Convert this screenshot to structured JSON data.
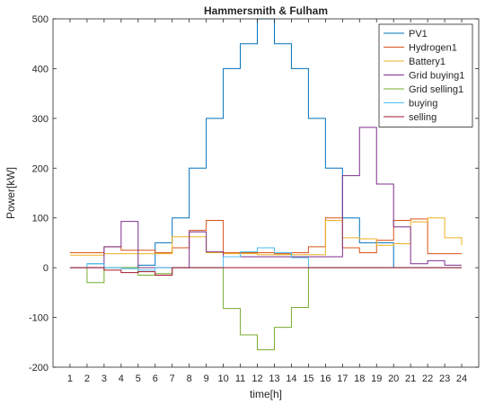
{
  "chart_data": {
    "type": "line",
    "step": true,
    "title": "Hammersmith & Fulham",
    "xlabel": "time[h]",
    "ylabel": "Power[kW]",
    "xlim": [
      0,
      25
    ],
    "ylim": [
      -200,
      500
    ],
    "xticks": [
      1,
      2,
      3,
      4,
      5,
      6,
      7,
      8,
      9,
      10,
      11,
      12,
      13,
      14,
      15,
      16,
      17,
      18,
      19,
      20,
      21,
      22,
      23,
      24
    ],
    "yticks": [
      -200,
      -100,
      0,
      100,
      200,
      300,
      400,
      500
    ],
    "grid": false,
    "legend": "top-right",
    "series": [
      {
        "name": "PV1",
        "color": "#0072BD",
        "x": [
          2,
          3,
          4,
          5,
          6,
          7,
          8,
          9,
          10,
          11,
          12,
          13,
          14,
          15,
          16,
          17,
          18,
          19,
          20
        ],
        "values": [
          8,
          0,
          0,
          5,
          50,
          100,
          200,
          300,
          400,
          450,
          500,
          450,
          400,
          300,
          200,
          100,
          50,
          50,
          0
        ]
      },
      {
        "name": "Hydrogen1",
        "color": "#D95319",
        "x": [
          1,
          2,
          3,
          4,
          5,
          6,
          7,
          8,
          9,
          10,
          11,
          12,
          13,
          14,
          15,
          16,
          17,
          18,
          19,
          20,
          21,
          22,
          23,
          24
        ],
        "values": [
          30,
          30,
          42,
          35,
          35,
          30,
          40,
          75,
          95,
          30,
          30,
          30,
          28,
          30,
          42,
          100,
          40,
          30,
          55,
          95,
          98,
          28,
          28,
          28
        ]
      },
      {
        "name": "Battery1",
        "color": "#EDB120",
        "x": [
          1,
          2,
          3,
          4,
          5,
          6,
          7,
          8,
          9,
          10,
          11,
          12,
          13,
          14,
          15,
          16,
          17,
          18,
          19,
          20,
          21,
          22,
          23,
          24
        ],
        "values": [
          25,
          25,
          28,
          28,
          28,
          28,
          62,
          62,
          30,
          28,
          28,
          26,
          26,
          26,
          26,
          95,
          60,
          58,
          45,
          48,
          92,
          100,
          60,
          45
        ]
      },
      {
        "name": "Grid buying1",
        "color": "#7E2F8E",
        "x": [
          1,
          2,
          3,
          4,
          5,
          6,
          7,
          8,
          9,
          10,
          11,
          12,
          13,
          14,
          15,
          16,
          17,
          18,
          19,
          20,
          21,
          22,
          23,
          24
        ],
        "values": [
          0,
          0,
          42,
          93,
          0,
          0,
          0,
          72,
          32,
          22,
          22,
          22,
          22,
          22,
          22,
          22,
          185,
          282,
          168,
          82,
          8,
          14,
          5,
          5
        ]
      },
      {
        "name": "Grid selling1",
        "color": "#77AC30",
        "x": [
          1,
          2,
          3,
          4,
          5,
          6,
          7,
          8,
          9,
          10,
          11,
          12,
          13,
          14,
          15,
          16,
          17,
          18,
          19,
          20,
          21,
          22,
          23,
          24
        ],
        "values": [
          0,
          -30,
          0,
          0,
          -15,
          -12,
          0,
          0,
          0,
          -82,
          -135,
          -165,
          -120,
          -80,
          0,
          0,
          0,
          0,
          0,
          0,
          0,
          0,
          0,
          0
        ]
      },
      {
        "name": "buying",
        "color": "#4DBEEE",
        "x": [
          1,
          2,
          3,
          4,
          5,
          6,
          7,
          8,
          9,
          10,
          11,
          12,
          13,
          14,
          15,
          16,
          17,
          18,
          19,
          20,
          21,
          22,
          23,
          24
        ],
        "values": [
          0,
          8,
          0,
          -2,
          -5,
          0,
          0,
          0,
          0,
          22,
          32,
          40,
          30,
          20,
          0,
          0,
          0,
          0,
          0,
          0,
          0,
          0,
          0,
          0
        ]
      },
      {
        "name": "selling",
        "color": "#A2142F",
        "x": [
          1,
          2,
          3,
          4,
          5,
          6,
          7,
          8,
          9,
          10,
          11,
          12,
          13,
          14,
          15,
          16,
          17,
          18,
          19,
          20,
          21,
          22,
          23,
          24
        ],
        "values": [
          0,
          0,
          -5,
          -10,
          -8,
          -15,
          0,
          0,
          0,
          0,
          0,
          0,
          0,
          0,
          0,
          0,
          0,
          0,
          0,
          0,
          0,
          0,
          0,
          0
        ]
      }
    ]
  }
}
